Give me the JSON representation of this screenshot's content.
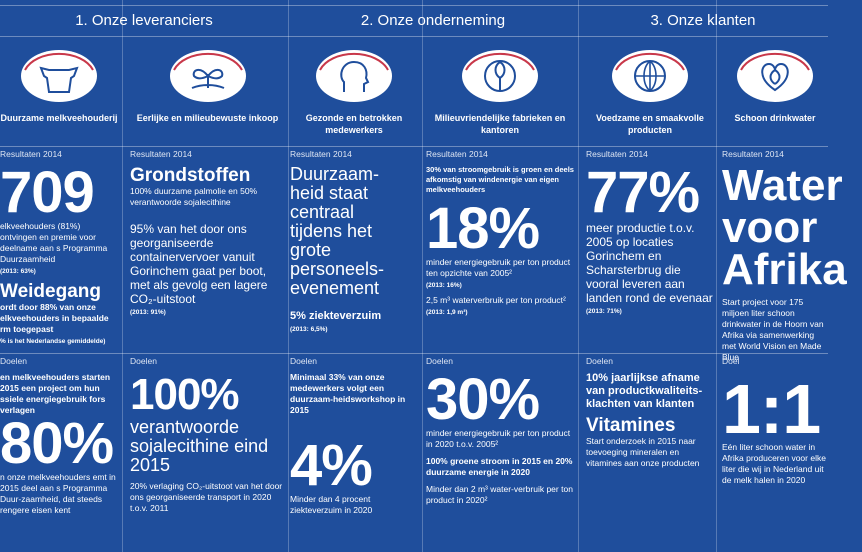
{
  "header": {
    "sections": [
      "1. Onze leveranciers",
      "2. Onze onderneming",
      "3. Onze klanten"
    ]
  },
  "columns": [
    {
      "title": "Duurzame melkveehouderij",
      "results_label": "Resultaten 2014",
      "results": [
        "709",
        "elkveehouders (81%) ontvingen en premie voor deelname aan s Programma Duurzaamheid",
        "(2013: 63%)",
        "Weidegang",
        "ordt door 88% van onze elkveehouders in bepaalde rm toegepast",
        "% is het Nederlandse gemiddelde)"
      ],
      "goals_label": "Doelen",
      "goals": [
        "en melkveehouders starten 2015 een project om hun ssiele energiegebruik fors verlagen",
        "80%",
        "n onze melkveehouders emt in 2015 deel aan s Programma Duur-zaamheid, dat steeds rengere eisen kent"
      ]
    },
    {
      "title": "Eerlijke en milieubewuste inkoop",
      "results_label": "Resultaten 2014",
      "results": [
        "Grondstoffen",
        "100% duurzame palmolie en 50% verantwoorde sojalecithine",
        "95% van het door ons georganiseerde containervervoer vanuit Gorinchem gaat per boot, met als gevolg een lagere CO₂-uitstoot",
        "(2013: 91%)"
      ],
      "goals_label": "Doelen",
      "goals": [
        "100%",
        "verantwoorde sojalecithine eind 2015",
        "20% verlaging CO₂-uitstoot van het door ons georganiseerde transport in 2020 t.o.v. 2011"
      ]
    },
    {
      "title": "Gezonde en betrokken medewerkers",
      "results_label": "Resultaten 2014",
      "results": [
        "Duurzaam-heid staat centraal tijdens het grote personeels-evenement",
        "5% ziekteverzuim",
        "(2013: 6,5%)"
      ],
      "goals_label": "Doelen",
      "goals": [
        "Minimaal 33% van onze medewerkers volgt een duurzaam-heidsworkshop in 2015",
        "4%",
        "Minder dan 4 procent ziekteverzuim in 2020"
      ]
    },
    {
      "title": "Milieuvriendelijke fabrieken en kantoren",
      "results_label": "Resultaten 2014",
      "results": [
        "30% van stroomgebruik is groen en deels afkomstig van windenergie van eigen melkveehouders",
        "18%",
        "minder energiegebruik per ton product ten opzichte van 2005²",
        "(2013: 16%)",
        "2,5 m³ waterverbruik per ton product²",
        "(2013: 1,9 m³)"
      ],
      "goals_label": "Doelen",
      "goals": [
        "30%",
        "minder energiegebruik per ton product in 2020 t.o.v. 2005²",
        "100% groene stroom in 2015 en 20% duurzame energie in 2020",
        "Minder dan 2 m³ water-verbruik per ton product in 2020²"
      ]
    },
    {
      "title": "Voedzame en smaakvolle producten",
      "results_label": "Resultaten 2014",
      "results": [
        "77%",
        "meer productie t.o.v. 2005 op locaties Gorinchem en Scharsterbrug die vooral leveren aan landen rond de evenaar",
        "(2013: 71%)"
      ],
      "goals_label": "Doelen",
      "goals": [
        "10% jaarlijkse afname van productkwaliteits-klachten van klanten",
        "Vitamines",
        "Start onderzoek in 2015 naar toevoeging mineralen en vitamines aan onze producten"
      ]
    },
    {
      "title": "Schoon drinkwater",
      "results_label": "Resultaten 2014",
      "results": [
        "Water voor Afrika",
        "Start project voor 175 miljoen liter schoon drinkwater in de Hoorn van Afrika via samenwerking met World Vision en Made Blue"
      ],
      "goals_label": "Doel",
      "goals": [
        "1:1",
        "Eén liter schoon water in Afrika produceren voor elke liter die wij in Nederland uit de melk halen in 2020"
      ]
    }
  ]
}
